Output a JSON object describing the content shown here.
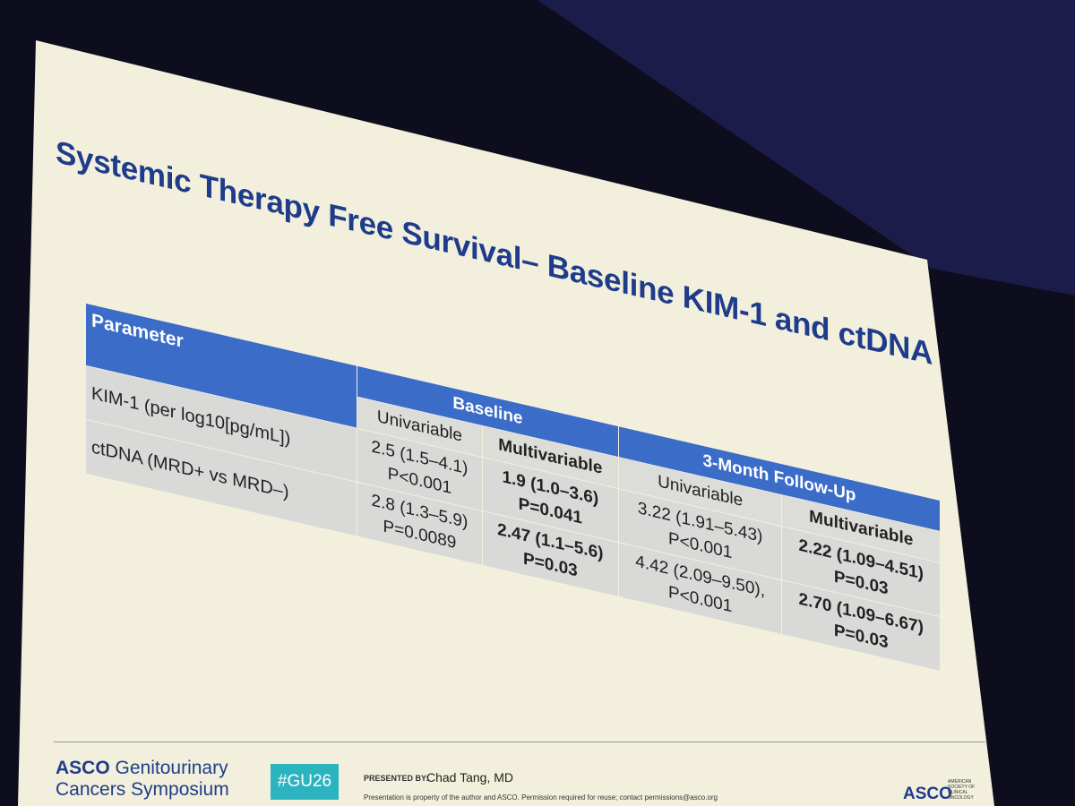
{
  "title": "Systemic Therapy Free Survival– Baseline KIM-1 and ctDNA",
  "table": {
    "header": {
      "parameter": "Parameter",
      "baseline": "Baseline",
      "followup": "3-Month Follow-Up"
    },
    "subheaders": [
      "Univariable",
      "Multivariable",
      "Univariable",
      "Multivariable"
    ],
    "rows": [
      [
        "KIM-1 (per log10[pg/mL])",
        "2.5 (1.5–4.1)",
        "P<0.001",
        "1.9 (1.0–3.6)",
        "P=0.041",
        "3.22 (1.91–5.43)",
        "P<0.001",
        "2.22 (1.09–4.51)",
        "P=0.03"
      ],
      [
        "ctDNA (MRD+ vs MRD–)",
        "2.8 (1.3–5.9)",
        "P=0.0089",
        "2.47 (1.1–5.6)",
        "P=0.03",
        "4.42 (2.09–9.50),",
        "P<0.001",
        "2.70 (1.09–6.67)",
        "P=0.03"
      ]
    ]
  },
  "footer": {
    "asco": "ASCO",
    "symposium_line1": "Genitourinary",
    "symposium_line2": "Cancers Symposium",
    "hashtag": "#GU26",
    "presented_by": "PRESENTED BY:",
    "presenter": "Chad Tang, MD",
    "disclaimer": "Presentation is property of the author and ASCO. Permission required for reuse; contact permissions@asco.org",
    "asco_right": "ASCO",
    "society": "AMERICAN SOCIETY OF CLINICAL ONCOLOGY"
  }
}
